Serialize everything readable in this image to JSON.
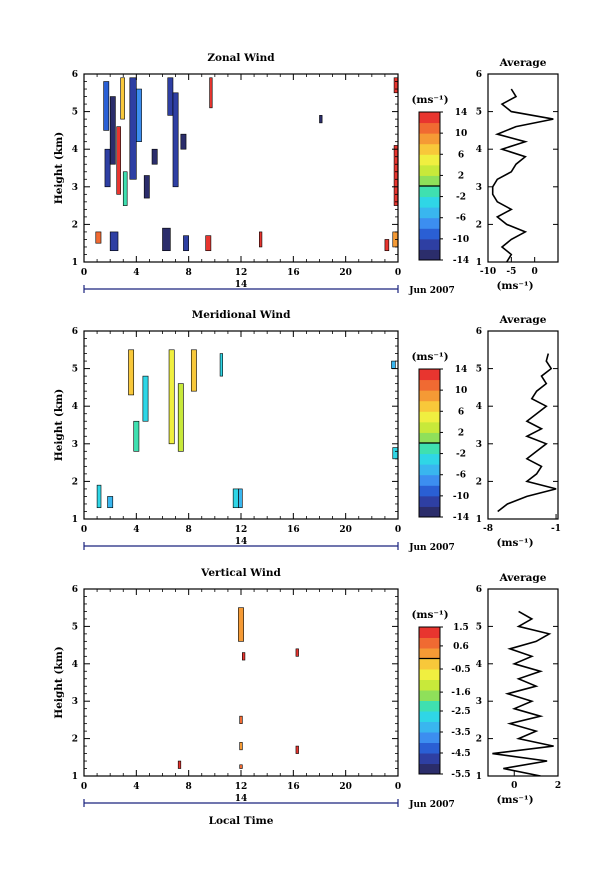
{
  "panels": [
    {
      "title": "Zonal Wind",
      "ylabel": "Height (km)",
      "cbar_unit": "(ms⁻¹)",
      "cbar_ticks": [
        "14",
        "10",
        "6",
        "2",
        "-2",
        "-6",
        "-10",
        "-14"
      ],
      "avg_title": "Average",
      "avg_ticks": [
        "-10",
        "-5",
        "0"
      ],
      "avg_unit": "(ms⁻¹)"
    },
    {
      "title": "Meridional Wind",
      "ylabel": "Height (km)",
      "cbar_unit": "(ms⁻¹)",
      "cbar_ticks": [
        "14",
        "10",
        "6",
        "2",
        "-2",
        "-6",
        "-10",
        "-14"
      ],
      "avg_title": "Average",
      "avg_ticks": [
        "-8",
        "-1"
      ],
      "avg_unit": "(ms⁻¹)"
    },
    {
      "title": "Vertical Wind",
      "ylabel": "Height (km)",
      "cbar_unit": "(ms⁻¹)",
      "cbar_ticks": [
        "1.5",
        "0.6",
        "-0.5",
        "-1.6",
        "-2.5",
        "-3.5",
        "-4.5",
        "-5.5"
      ],
      "avg_title": "Average",
      "avg_ticks": [
        "0",
        "2"
      ],
      "avg_unit": "(ms⁻¹)"
    }
  ],
  "x_ticks": [
    "0",
    "4",
    "8",
    "12",
    "16",
    "20",
    "0"
  ],
  "y_ticks": [
    "1",
    "2",
    "3",
    "4",
    "5",
    "6"
  ],
  "date_day": "14",
  "date_label": "Jun 2007",
  "xlabel": "Local Time",
  "chart_data": [
    {
      "type": "heatmap",
      "title": "Zonal Wind",
      "xlim": [
        0,
        24
      ],
      "ylim": [
        1,
        6
      ],
      "units": "ms-1",
      "cells": [
        {
          "x0": 1.5,
          "x1": 1.9,
          "y0": 4.5,
          "y1": 5.8,
          "v": -10
        },
        {
          "x0": 1.6,
          "x1": 2.0,
          "y0": 3.0,
          "y1": 4.0,
          "v": -12
        },
        {
          "x0": 2.0,
          "x1": 2.4,
          "y0": 3.6,
          "y1": 5.4,
          "v": -13
        },
        {
          "x0": 2.5,
          "x1": 2.8,
          "y0": 2.8,
          "y1": 4.6,
          "v": 12
        },
        {
          "x0": 2.8,
          "x1": 3.1,
          "y0": 4.8,
          "y1": 5.9,
          "v": 6
        },
        {
          "x0": 3.0,
          "x1": 3.3,
          "y0": 2.5,
          "y1": 3.4,
          "v": -2
        },
        {
          "x0": 3.5,
          "x1": 4.0,
          "y0": 3.2,
          "y1": 5.9,
          "v": -12
        },
        {
          "x0": 4.0,
          "x1": 4.4,
          "y0": 4.2,
          "y1": 5.6,
          "v": -8
        },
        {
          "x0": 4.6,
          "x1": 5.0,
          "y0": 2.7,
          "y1": 3.3,
          "v": -13
        },
        {
          "x0": 5.2,
          "x1": 5.6,
          "y0": 3.6,
          "y1": 4.0,
          "v": -14
        },
        {
          "x0": 6.4,
          "x1": 6.8,
          "y0": 4.9,
          "y1": 5.9,
          "v": -12
        },
        {
          "x0": 6.8,
          "x1": 7.2,
          "y0": 3.0,
          "y1": 5.5,
          "v": -11
        },
        {
          "x0": 7.4,
          "x1": 7.8,
          "y0": 4.0,
          "y1": 4.4,
          "v": -14
        },
        {
          "x0": 9.6,
          "x1": 9.8,
          "y0": 5.1,
          "y1": 5.9,
          "v": 12
        },
        {
          "x0": 6.0,
          "x1": 6.6,
          "y0": 1.3,
          "y1": 1.9,
          "v": -13
        },
        {
          "x0": 2.0,
          "x1": 2.6,
          "y0": 1.3,
          "y1": 1.8,
          "v": -12
        },
        {
          "x0": 0.9,
          "x1": 1.3,
          "y0": 1.5,
          "y1": 1.8,
          "v": 10
        },
        {
          "x0": 7.6,
          "x1": 8.0,
          "y0": 1.3,
          "y1": 1.7,
          "v": -12
        },
        {
          "x0": 9.3,
          "x1": 9.7,
          "y0": 1.3,
          "y1": 1.7,
          "v": 14
        },
        {
          "x0": 13.4,
          "x1": 13.6,
          "y0": 1.4,
          "y1": 1.8,
          "v": 14
        },
        {
          "x0": 18.0,
          "x1": 18.2,
          "y0": 4.7,
          "y1": 4.9,
          "v": -13
        },
        {
          "x0": 23.7,
          "x1": 24.0,
          "y0": 2.5,
          "y1": 4.1,
          "v": 14
        },
        {
          "x0": 23.7,
          "x1": 24.0,
          "y0": 5.5,
          "y1": 5.9,
          "v": 12
        },
        {
          "x0": 23.0,
          "x1": 23.3,
          "y0": 1.3,
          "y1": 1.6,
          "v": 14
        },
        {
          "x0": 23.6,
          "x1": 24.0,
          "y0": 1.4,
          "y1": 1.8,
          "v": 8
        }
      ],
      "colorbar": {
        "min": -14,
        "max": 14,
        "ticks": [
          14,
          10,
          6,
          2,
          -2,
          -6,
          -10,
          -14
        ]
      },
      "average_profile": {
        "xlim": [
          -10,
          5
        ],
        "xticks": [
          -10,
          -5,
          0
        ],
        "heights": [
          1.0,
          1.2,
          1.4,
          1.6,
          1.8,
          2.0,
          2.2,
          2.4,
          2.6,
          2.8,
          3.0,
          3.2,
          3.4,
          3.6,
          3.8,
          4.0,
          4.2,
          4.4,
          4.6,
          4.8,
          5.0,
          5.2,
          5.4,
          5.6
        ],
        "values": [
          -6,
          -5,
          -7,
          -5,
          -2,
          -6,
          -8,
          -5,
          -8,
          -9,
          -9,
          -8,
          -5,
          -4,
          -2,
          -7,
          -2,
          -8,
          -4,
          4,
          -5,
          -7,
          -4,
          -5
        ]
      }
    },
    {
      "type": "heatmap",
      "title": "Meridional Wind",
      "xlim": [
        0,
        24
      ],
      "ylim": [
        1,
        6
      ],
      "units": "ms-1",
      "cells": [
        {
          "x0": 1.0,
          "x1": 1.3,
          "y0": 1.3,
          "y1": 1.9,
          "v": -4
        },
        {
          "x0": 1.8,
          "x1": 2.2,
          "y0": 1.3,
          "y1": 1.6,
          "v": -6
        },
        {
          "x0": 3.4,
          "x1": 3.8,
          "y0": 4.3,
          "y1": 5.5,
          "v": 6
        },
        {
          "x0": 3.8,
          "x1": 4.2,
          "y0": 2.8,
          "y1": 3.6,
          "v": -2
        },
        {
          "x0": 4.5,
          "x1": 4.9,
          "y0": 3.6,
          "y1": 4.8,
          "v": -4
        },
        {
          "x0": 6.5,
          "x1": 6.9,
          "y0": 3.0,
          "y1": 5.5,
          "v": 4
        },
        {
          "x0": 7.2,
          "x1": 7.6,
          "y0": 2.8,
          "y1": 4.6,
          "v": 2
        },
        {
          "x0": 8.2,
          "x1": 8.6,
          "y0": 4.4,
          "y1": 5.5,
          "v": 6
        },
        {
          "x0": 10.4,
          "x1": 10.6,
          "y0": 4.8,
          "y1": 5.4,
          "v": -4
        },
        {
          "x0": 11.8,
          "x1": 12.1,
          "y0": 1.3,
          "y1": 1.8,
          "v": -5
        },
        {
          "x0": 11.4,
          "x1": 11.8,
          "y0": 1.3,
          "y1": 1.8,
          "v": -3
        },
        {
          "x0": 23.6,
          "x1": 24.0,
          "y0": 2.6,
          "y1": 2.9,
          "v": -4
        },
        {
          "x0": 23.5,
          "x1": 23.8,
          "y0": 5.0,
          "y1": 5.2,
          "v": -6
        }
      ],
      "colorbar": {
        "min": -14,
        "max": 14,
        "ticks": [
          14,
          10,
          6,
          2,
          -2,
          -6,
          -10,
          -14
        ]
      },
      "average_profile": {
        "xlim": [
          -8,
          -0.8
        ],
        "xticks": [
          -8,
          -1
        ],
        "heights": [
          1.2,
          1.4,
          1.6,
          1.8,
          2.0,
          2.2,
          2.4,
          2.6,
          2.8,
          3.0,
          3.2,
          3.4,
          3.6,
          3.8,
          4.0,
          4.2,
          4.4,
          4.6,
          4.8,
          5.0,
          5.2,
          5.4
        ],
        "values": [
          -7,
          -6,
          -4,
          -1,
          -4,
          -3,
          -2.5,
          -4,
          -3,
          -2,
          -4,
          -2.5,
          -4,
          -3,
          -2,
          -3.5,
          -3,
          -2,
          -2.5,
          -1.5,
          -2,
          -1.8
        ]
      }
    },
    {
      "type": "heatmap",
      "title": "Vertical Wind",
      "xlim": [
        0,
        24
      ],
      "ylim": [
        1,
        6
      ],
      "units": "ms-1",
      "cells": [
        {
          "x0": 11.8,
          "x1": 12.2,
          "y0": 4.6,
          "y1": 5.5,
          "v": 0.2
        },
        {
          "x0": 12.1,
          "x1": 12.3,
          "y0": 4.1,
          "y1": 4.3,
          "v": 1.0
        },
        {
          "x0": 16.2,
          "x1": 16.4,
          "y0": 4.2,
          "y1": 4.4,
          "v": 1.5
        },
        {
          "x0": 11.9,
          "x1": 12.1,
          "y0": 2.4,
          "y1": 2.6,
          "v": 0.6
        },
        {
          "x0": 11.9,
          "x1": 12.1,
          "y0": 1.7,
          "y1": 1.9,
          "v": 0.3
        },
        {
          "x0": 16.2,
          "x1": 16.4,
          "y0": 1.6,
          "y1": 1.8,
          "v": 1.5
        },
        {
          "x0": 7.2,
          "x1": 7.4,
          "y0": 1.2,
          "y1": 1.4,
          "v": 1.2
        },
        {
          "x0": 11.9,
          "x1": 12.1,
          "y0": 1.2,
          "y1": 1.3,
          "v": 0.6
        }
      ],
      "colorbar": {
        "min": -5.5,
        "max": 1.5,
        "ticks": [
          1.5,
          0.6,
          -0.5,
          -1.6,
          -2.5,
          -3.5,
          -4.5,
          -5.5
        ]
      },
      "average_profile": {
        "xlim": [
          -1.2,
          2.0
        ],
        "xticks": [
          0,
          2
        ],
        "heights": [
          1.0,
          1.2,
          1.4,
          1.6,
          1.8,
          2.0,
          2.2,
          2.4,
          2.6,
          2.8,
          3.0,
          3.2,
          3.4,
          3.6,
          3.8,
          4.0,
          4.2,
          4.4,
          4.6,
          4.8,
          5.0,
          5.2,
          5.4
        ],
        "values": [
          1.2,
          -0.5,
          1.5,
          -1.0,
          1.8,
          0.2,
          1.0,
          -0.2,
          1.2,
          0.0,
          0.8,
          -0.3,
          1.0,
          0.2,
          1.2,
          0.0,
          0.8,
          -0.2,
          1.0,
          1.6,
          0.2,
          0.8,
          0.2
        ]
      }
    }
  ]
}
